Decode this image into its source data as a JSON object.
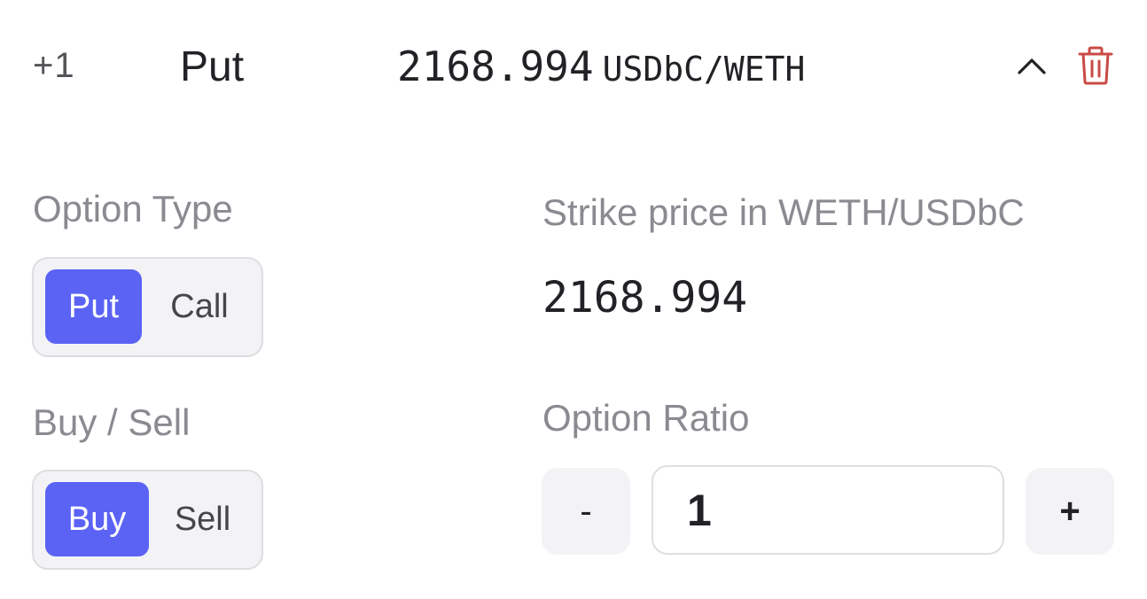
{
  "leg": {
    "ratio": "+1",
    "type": "Put",
    "strike": "2168.994",
    "pair": "USDbC/WETH"
  },
  "icons": {
    "collapse": "chevron-up-icon",
    "delete": "trash-icon",
    "delete_color": "#c94a45"
  },
  "option_type": {
    "label": "Option Type",
    "options": [
      "Put",
      "Call"
    ],
    "selected": "Put"
  },
  "buy_sell": {
    "label": "Buy / Sell",
    "options": [
      "Buy",
      "Sell"
    ],
    "selected": "Buy"
  },
  "strike_price": {
    "label": "Strike price in WETH/USDbC",
    "value": "2168.994"
  },
  "option_ratio": {
    "label": "Option Ratio",
    "decrement_label": "-",
    "increment_label": "+",
    "value": "1"
  },
  "colors": {
    "accent": "#5b63f5",
    "label_gray": "#8a8a90",
    "control_bg": "#f3f3f6"
  }
}
